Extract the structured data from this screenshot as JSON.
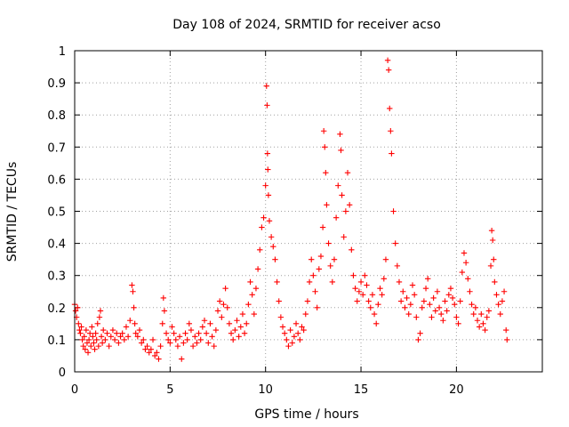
{
  "chart_data": {
    "type": "scatter",
    "title": "Day 108 of 2024, SRMTID for receiver acso",
    "xlabel": "GPS time / hours",
    "ylabel": "SRMTID / TECUs",
    "xlim": [
      0,
      24.5
    ],
    "ylim": [
      0,
      1
    ],
    "grid": true,
    "marker": "plus",
    "color": "#ff0000",
    "x_ticks": [
      0,
      5,
      10,
      15,
      20
    ],
    "x_tick_labels": [
      "0",
      "5",
      "10",
      "15",
      "20"
    ],
    "y_ticks": [
      0,
      0.1,
      0.2,
      0.3,
      0.4,
      0.5,
      0.6,
      0.7,
      0.8,
      0.9,
      1
    ],
    "y_tick_labels": [
      "0",
      "0.1",
      "0.2",
      "0.3",
      "0.4",
      "0.5",
      "0.6",
      "0.7",
      "0.8",
      "0.9",
      "1"
    ],
    "series": [
      {
        "name": "SRMTID",
        "points": [
          [
            0.0,
            0.21
          ],
          [
            0.05,
            0.19
          ],
          [
            0.1,
            0.17
          ],
          [
            0.15,
            0.2
          ],
          [
            0.2,
            0.15
          ],
          [
            0.25,
            0.13
          ],
          [
            0.3,
            0.12
          ],
          [
            0.35,
            0.14
          ],
          [
            0.4,
            0.1
          ],
          [
            0.45,
            0.08
          ],
          [
            0.5,
            0.11
          ],
          [
            0.55,
            0.07
          ],
          [
            0.6,
            0.13
          ],
          [
            0.65,
            0.09
          ],
          [
            0.7,
            0.06
          ],
          [
            0.75,
            0.1
          ],
          [
            0.8,
            0.12
          ],
          [
            0.85,
            0.08
          ],
          [
            0.9,
            0.14
          ],
          [
            0.95,
            0.11
          ],
          [
            1.0,
            0.09
          ],
          [
            1.05,
            0.07
          ],
          [
            1.1,
            0.12
          ],
          [
            1.15,
            0.1
          ],
          [
            1.2,
            0.15
          ],
          [
            1.25,
            0.08
          ],
          [
            1.3,
            0.17
          ],
          [
            1.35,
            0.19
          ],
          [
            1.4,
            0.11
          ],
          [
            1.45,
            0.09
          ],
          [
            1.5,
            0.13
          ],
          [
            1.6,
            0.1
          ],
          [
            1.7,
            0.12
          ],
          [
            1.8,
            0.08
          ],
          [
            1.9,
            0.11
          ],
          [
            2.0,
            0.13
          ],
          [
            2.1,
            0.1
          ],
          [
            2.2,
            0.12
          ],
          [
            2.3,
            0.09
          ],
          [
            2.4,
            0.11
          ],
          [
            2.5,
            0.12
          ],
          [
            2.6,
            0.1
          ],
          [
            2.7,
            0.14
          ],
          [
            2.8,
            0.11
          ],
          [
            2.9,
            0.16
          ],
          [
            3.0,
            0.27
          ],
          [
            3.05,
            0.25
          ],
          [
            3.1,
            0.2
          ],
          [
            3.15,
            0.15
          ],
          [
            3.2,
            0.12
          ],
          [
            3.3,
            0.11
          ],
          [
            3.4,
            0.13
          ],
          [
            3.5,
            0.09
          ],
          [
            3.6,
            0.1
          ],
          [
            3.7,
            0.07
          ],
          [
            3.8,
            0.08
          ],
          [
            3.9,
            0.06
          ],
          [
            4.0,
            0.07
          ],
          [
            4.1,
            0.1
          ],
          [
            4.2,
            0.05
          ],
          [
            4.3,
            0.06
          ],
          [
            4.4,
            0.04
          ],
          [
            4.5,
            0.08
          ],
          [
            4.6,
            0.15
          ],
          [
            4.65,
            0.23
          ],
          [
            4.7,
            0.19
          ],
          [
            4.8,
            0.12
          ],
          [
            4.9,
            0.1
          ],
          [
            5.0,
            0.09
          ],
          [
            5.1,
            0.14
          ],
          [
            5.2,
            0.12
          ],
          [
            5.3,
            0.1
          ],
          [
            5.4,
            0.08
          ],
          [
            5.5,
            0.11
          ],
          [
            5.6,
            0.04
          ],
          [
            5.7,
            0.09
          ],
          [
            5.8,
            0.12
          ],
          [
            5.9,
            0.1
          ],
          [
            6.0,
            0.15
          ],
          [
            6.1,
            0.13
          ],
          [
            6.2,
            0.08
          ],
          [
            6.3,
            0.11
          ],
          [
            6.4,
            0.09
          ],
          [
            6.5,
            0.12
          ],
          [
            6.6,
            0.1
          ],
          [
            6.7,
            0.14
          ],
          [
            6.8,
            0.16
          ],
          [
            6.9,
            0.12
          ],
          [
            7.0,
            0.09
          ],
          [
            7.1,
            0.15
          ],
          [
            7.2,
            0.11
          ],
          [
            7.3,
            0.08
          ],
          [
            7.4,
            0.13
          ],
          [
            7.5,
            0.19
          ],
          [
            7.6,
            0.22
          ],
          [
            7.7,
            0.17
          ],
          [
            7.8,
            0.21
          ],
          [
            7.9,
            0.26
          ],
          [
            8.0,
            0.2
          ],
          [
            8.1,
            0.15
          ],
          [
            8.2,
            0.12
          ],
          [
            8.3,
            0.1
          ],
          [
            8.4,
            0.13
          ],
          [
            8.5,
            0.16
          ],
          [
            8.6,
            0.11
          ],
          [
            8.7,
            0.14
          ],
          [
            8.8,
            0.18
          ],
          [
            8.9,
            0.12
          ],
          [
            9.0,
            0.15
          ],
          [
            9.1,
            0.21
          ],
          [
            9.2,
            0.28
          ],
          [
            9.3,
            0.24
          ],
          [
            9.4,
            0.18
          ],
          [
            9.5,
            0.26
          ],
          [
            9.6,
            0.32
          ],
          [
            9.7,
            0.38
          ],
          [
            9.8,
            0.45
          ],
          [
            9.9,
            0.48
          ],
          [
            10.0,
            0.58
          ],
          [
            10.05,
            0.89
          ],
          [
            10.08,
            0.83
          ],
          [
            10.1,
            0.68
          ],
          [
            10.12,
            0.63
          ],
          [
            10.15,
            0.55
          ],
          [
            10.2,
            0.47
          ],
          [
            10.3,
            0.42
          ],
          [
            10.4,
            0.39
          ],
          [
            10.5,
            0.35
          ],
          [
            10.6,
            0.28
          ],
          [
            10.7,
            0.22
          ],
          [
            10.8,
            0.17
          ],
          [
            10.9,
            0.14
          ],
          [
            11.0,
            0.12
          ],
          [
            11.1,
            0.1
          ],
          [
            11.2,
            0.08
          ],
          [
            11.3,
            0.13
          ],
          [
            11.4,
            0.09
          ],
          [
            11.5,
            0.11
          ],
          [
            11.6,
            0.15
          ],
          [
            11.7,
            0.12
          ],
          [
            11.8,
            0.1
          ],
          [
            11.9,
            0.14
          ],
          [
            12.0,
            0.13
          ],
          [
            12.1,
            0.18
          ],
          [
            12.2,
            0.22
          ],
          [
            12.3,
            0.28
          ],
          [
            12.4,
            0.35
          ],
          [
            12.5,
            0.3
          ],
          [
            12.6,
            0.25
          ],
          [
            12.7,
            0.2
          ],
          [
            12.8,
            0.32
          ],
          [
            12.9,
            0.36
          ],
          [
            13.0,
            0.45
          ],
          [
            13.05,
            0.75
          ],
          [
            13.1,
            0.7
          ],
          [
            13.15,
            0.62
          ],
          [
            13.2,
            0.52
          ],
          [
            13.3,
            0.4
          ],
          [
            13.4,
            0.33
          ],
          [
            13.5,
            0.28
          ],
          [
            13.6,
            0.35
          ],
          [
            13.7,
            0.48
          ],
          [
            13.8,
            0.58
          ],
          [
            13.9,
            0.74
          ],
          [
            13.95,
            0.69
          ],
          [
            14.0,
            0.55
          ],
          [
            14.1,
            0.42
          ],
          [
            14.2,
            0.5
          ],
          [
            14.3,
            0.62
          ],
          [
            14.4,
            0.52
          ],
          [
            14.5,
            0.38
          ],
          [
            14.6,
            0.3
          ],
          [
            14.7,
            0.26
          ],
          [
            14.8,
            0.22
          ],
          [
            14.9,
            0.25
          ],
          [
            15.0,
            0.28
          ],
          [
            15.1,
            0.24
          ],
          [
            15.2,
            0.3
          ],
          [
            15.3,
            0.27
          ],
          [
            15.4,
            0.22
          ],
          [
            15.5,
            0.2
          ],
          [
            15.6,
            0.24
          ],
          [
            15.7,
            0.18
          ],
          [
            15.8,
            0.15
          ],
          [
            15.9,
            0.21
          ],
          [
            16.0,
            0.26
          ],
          [
            16.1,
            0.24
          ],
          [
            16.2,
            0.29
          ],
          [
            16.3,
            0.35
          ],
          [
            16.4,
            0.97
          ],
          [
            16.45,
            0.94
          ],
          [
            16.5,
            0.82
          ],
          [
            16.55,
            0.75
          ],
          [
            16.6,
            0.68
          ],
          [
            16.7,
            0.5
          ],
          [
            16.8,
            0.4
          ],
          [
            16.9,
            0.33
          ],
          [
            17.0,
            0.28
          ],
          [
            17.1,
            0.22
          ],
          [
            17.2,
            0.25
          ],
          [
            17.3,
            0.2
          ],
          [
            17.4,
            0.23
          ],
          [
            17.5,
            0.18
          ],
          [
            17.6,
            0.21
          ],
          [
            17.7,
            0.27
          ],
          [
            17.8,
            0.24
          ],
          [
            17.9,
            0.17
          ],
          [
            18.0,
            0.1
          ],
          [
            18.1,
            0.12
          ],
          [
            18.2,
            0.2
          ],
          [
            18.3,
            0.22
          ],
          [
            18.4,
            0.26
          ],
          [
            18.5,
            0.29
          ],
          [
            18.6,
            0.21
          ],
          [
            18.7,
            0.17
          ],
          [
            18.8,
            0.23
          ],
          [
            18.9,
            0.19
          ],
          [
            19.0,
            0.25
          ],
          [
            19.1,
            0.2
          ],
          [
            19.2,
            0.18
          ],
          [
            19.3,
            0.16
          ],
          [
            19.4,
            0.22
          ],
          [
            19.5,
            0.19
          ],
          [
            19.6,
            0.24
          ],
          [
            19.7,
            0.26
          ],
          [
            19.8,
            0.23
          ],
          [
            19.9,
            0.21
          ],
          [
            20.0,
            0.17
          ],
          [
            20.1,
            0.15
          ],
          [
            20.2,
            0.22
          ],
          [
            20.3,
            0.31
          ],
          [
            20.4,
            0.37
          ],
          [
            20.5,
            0.34
          ],
          [
            20.6,
            0.29
          ],
          [
            20.7,
            0.25
          ],
          [
            20.8,
            0.21
          ],
          [
            20.9,
            0.18
          ],
          [
            21.0,
            0.2
          ],
          [
            21.1,
            0.16
          ],
          [
            21.2,
            0.14
          ],
          [
            21.3,
            0.18
          ],
          [
            21.4,
            0.15
          ],
          [
            21.5,
            0.13
          ],
          [
            21.6,
            0.17
          ],
          [
            21.7,
            0.19
          ],
          [
            21.8,
            0.33
          ],
          [
            21.85,
            0.44
          ],
          [
            21.9,
            0.41
          ],
          [
            21.95,
            0.35
          ],
          [
            22.0,
            0.28
          ],
          [
            22.1,
            0.24
          ],
          [
            22.2,
            0.21
          ],
          [
            22.3,
            0.18
          ],
          [
            22.4,
            0.22
          ],
          [
            22.5,
            0.25
          ],
          [
            22.6,
            0.13
          ],
          [
            22.65,
            0.1
          ]
        ]
      }
    ]
  }
}
